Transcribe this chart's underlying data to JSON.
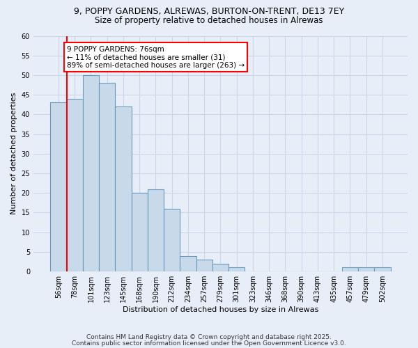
{
  "title_line1": "9, POPPY GARDENS, ALREWAS, BURTON-ON-TRENT, DE13 7EY",
  "title_line2": "Size of property relative to detached houses in Alrewas",
  "xlabel": "Distribution of detached houses by size in Alrewas",
  "ylabel": "Number of detached properties",
  "categories": [
    "56sqm",
    "78sqm",
    "101sqm",
    "123sqm",
    "145sqm",
    "168sqm",
    "190sqm",
    "212sqm",
    "234sqm",
    "257sqm",
    "279sqm",
    "301sqm",
    "323sqm",
    "346sqm",
    "368sqm",
    "390sqm",
    "413sqm",
    "435sqm",
    "457sqm",
    "479sqm",
    "502sqm"
  ],
  "values": [
    43,
    44,
    50,
    48,
    42,
    20,
    21,
    16,
    4,
    3,
    2,
    1,
    0,
    0,
    0,
    0,
    0,
    0,
    1,
    1,
    1
  ],
  "bar_color": "#c8daea",
  "bar_edge_color": "#6699bb",
  "bar_edge_width": 0.8,
  "annotation_text": "9 POPPY GARDENS: 76sqm\n← 11% of detached houses are smaller (31)\n89% of semi-detached houses are larger (263) →",
  "ylim": [
    0,
    60
  ],
  "yticks": [
    0,
    5,
    10,
    15,
    20,
    25,
    30,
    35,
    40,
    45,
    50,
    55,
    60
  ],
  "grid_color": "#c8d8e8",
  "background_color": "#e8eef8",
  "footer_line1": "Contains HM Land Registry data © Crown copyright and database right 2025.",
  "footer_line2": "Contains public sector information licensed under the Open Government Licence v3.0."
}
